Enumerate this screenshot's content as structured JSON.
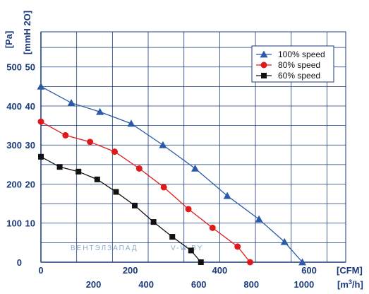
{
  "chart_data": {
    "type": "line",
    "y_units": {
      "pa": "[Pa]",
      "mmh2o": "[mmH 2O]"
    },
    "x_units": {
      "cfm": "[CFM]",
      "m3h_main": "[m",
      "m3h_sup": "3",
      "m3h_end": "/h]"
    },
    "pa_ticks": [
      "500",
      "400",
      "300",
      "200",
      "100",
      "0"
    ],
    "mm_ticks": [
      "50",
      "40",
      "30",
      "20",
      "10"
    ],
    "cfm_ticks": [
      "0",
      "200",
      "400",
      "600"
    ],
    "m3h_ticks": [
      "200",
      "400",
      "600",
      "800",
      "1000"
    ],
    "xlim_cfm": [
      0,
      682
    ],
    "ylim_pa": [
      0,
      590
    ],
    "grid": true,
    "legend_position": "top-right",
    "series": [
      {
        "name": "100% speed",
        "color": "#2a5aa8",
        "marker": "triangle",
        "x_cfm": [
          0,
          68,
          132,
          202,
          273,
          345,
          417,
          488,
          545,
          585
        ],
        "y_pa": [
          450,
          408,
          385,
          355,
          300,
          240,
          170,
          110,
          52,
          0
        ]
      },
      {
        "name": "80% speed",
        "color": "#e01a1a",
        "marker": "circle",
        "x_cfm": [
          0,
          55,
          110,
          165,
          220,
          275,
          330,
          384,
          440,
          468
        ],
        "y_pa": [
          360,
          325,
          308,
          283,
          240,
          192,
          136,
          88,
          40,
          0
        ]
      },
      {
        "name": "60% speed",
        "color": "#111111",
        "marker": "square",
        "x_cfm": [
          0,
          42,
          84,
          126,
          168,
          210,
          252,
          294,
          336,
          358
        ],
        "y_pa": [
          270,
          244,
          232,
          212,
          180,
          145,
          103,
          65,
          30,
          0
        ]
      }
    ],
    "watermark": {
      "main": "ВЕНТЭЛЗАПАД",
      "site": "V-W.BY"
    }
  }
}
